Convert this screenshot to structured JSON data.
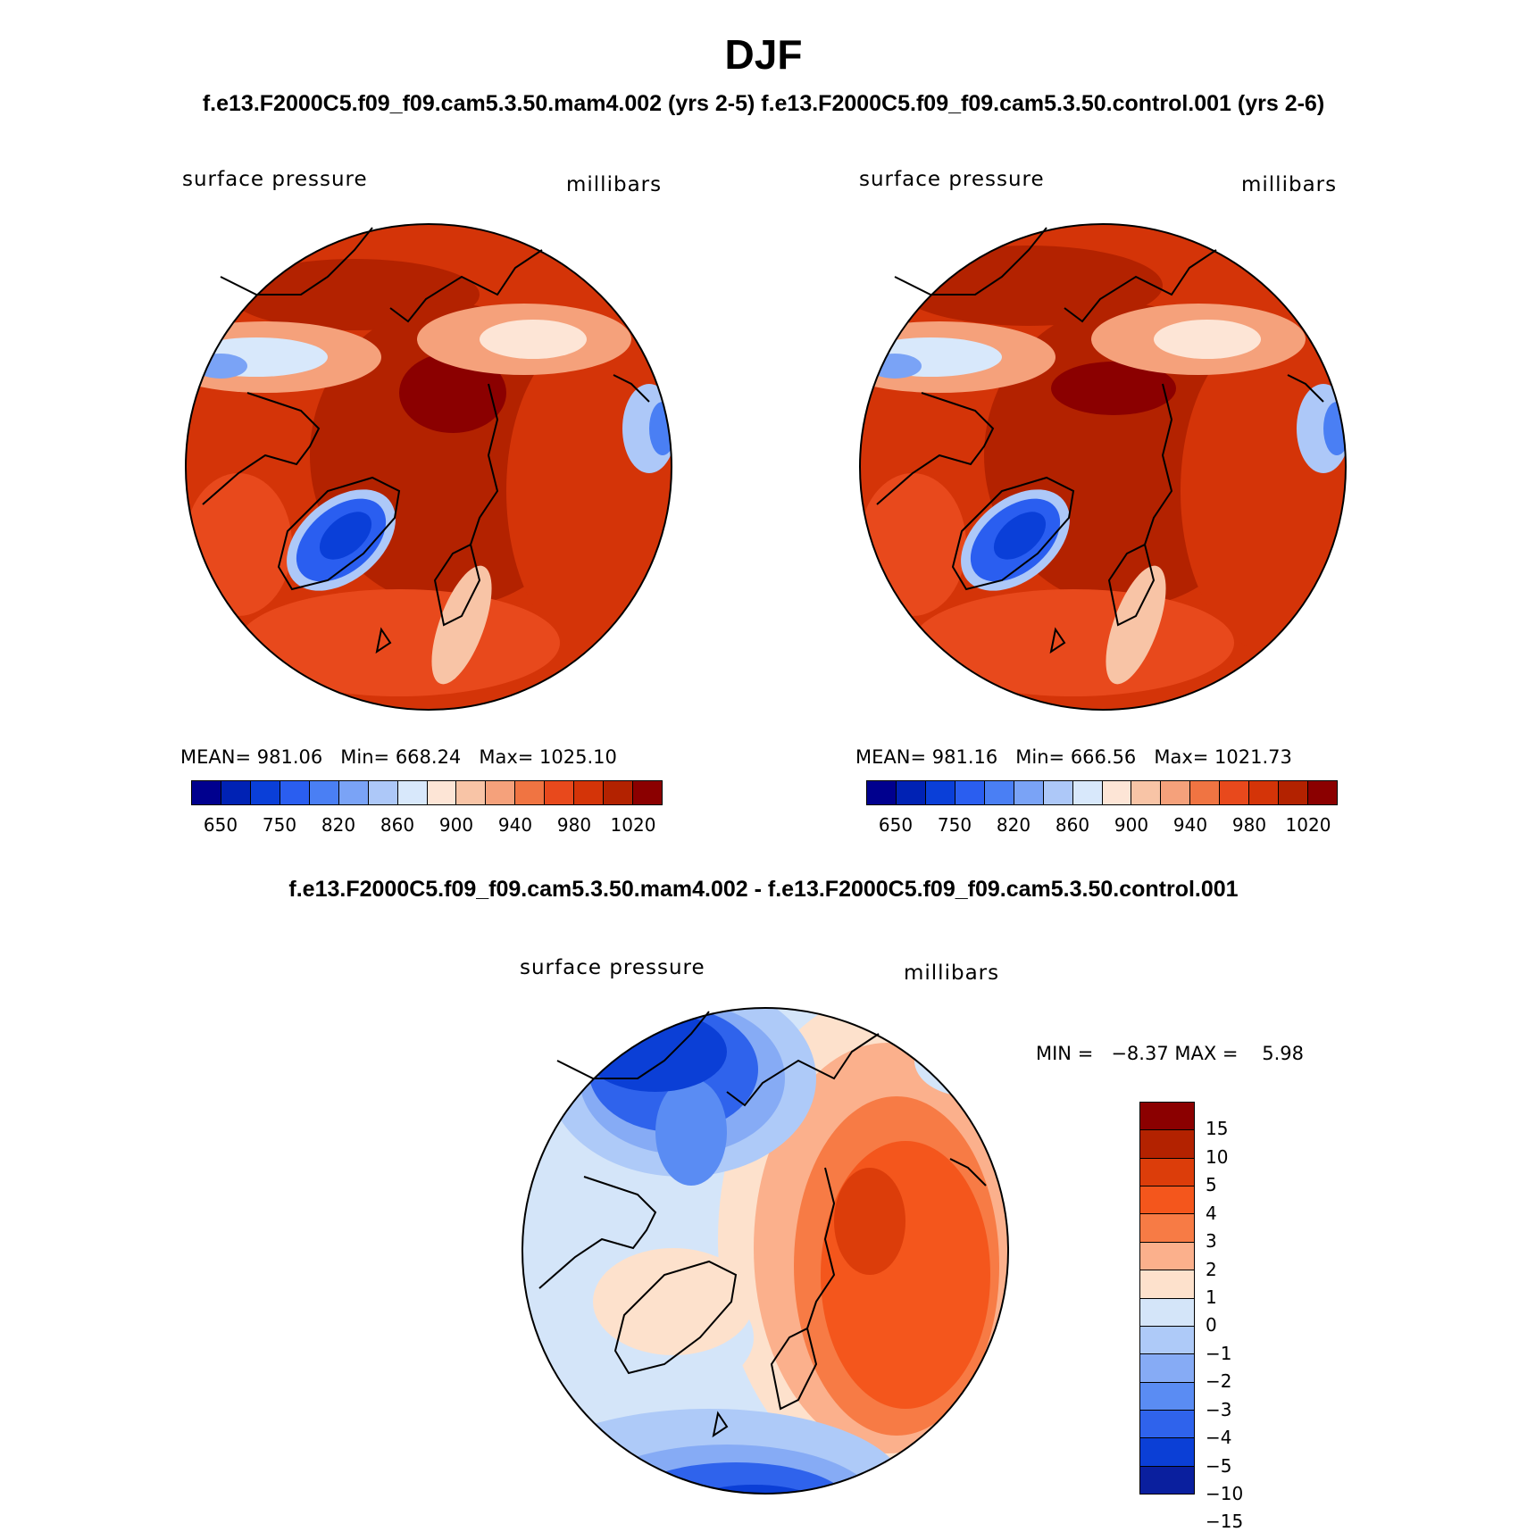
{
  "title": "DJF",
  "subtitle": "f.e13.F2000C5.f09_f09.cam5.3.50.mam4.002 (yrs 2-5) f.e13.F2000C5.f09_f09.cam5.3.50.control.001 (yrs 2-6)",
  "diff_title": "f.e13.F2000C5.f09_f09.cam5.3.50.mam4.002 - f.e13.F2000C5.f09_f09.cam5.3.50.control.001",
  "colors": {
    "abs_scale": [
      "#00008e",
      "#0022b4",
      "#0a3fd8",
      "#2a5ef0",
      "#4a7ff4",
      "#7aa3f6",
      "#adc8f8",
      "#d8e8fb",
      "#fde5d6",
      "#f8c4a6",
      "#f5a17b",
      "#f07442",
      "#e8491c",
      "#d43408",
      "#b32200",
      "#8b0000"
    ],
    "diff_scale": [
      "#8b0000",
      "#b32200",
      "#dc3d0a",
      "#f4561c",
      "#f77b45",
      "#fbb08c",
      "#fde1cc",
      "#d4e5f9",
      "#aecaf8",
      "#86abf5",
      "#5a8cf3",
      "#2f63ec",
      "#0b3fd6",
      "#0a1f9e"
    ],
    "land_outline": "#000000"
  },
  "chart_data": [
    {
      "type": "heatmap",
      "projection": "north-polar-stereographic",
      "panel": "mam4.002",
      "variable_label": "surface pressure",
      "units_label": "millibars",
      "stats": {
        "mean_label": "MEAN=",
        "mean": "981.06",
        "min_label": "Min=",
        "min": "668.24",
        "max_label": "Max=",
        "max": "1025.10"
      },
      "contour_levels": [
        650,
        700,
        750,
        800,
        820,
        840,
        860,
        880,
        900,
        920,
        940,
        960,
        980,
        1000,
        1020
      ],
      "colorbar_tick_labels": [
        "650",
        "750",
        "820",
        "860",
        "900",
        "940",
        "980",
        "1020"
      ]
    },
    {
      "type": "heatmap",
      "projection": "north-polar-stereographic",
      "panel": "control.001",
      "variable_label": "surface pressure",
      "units_label": "millibars",
      "stats": {
        "mean_label": "MEAN=",
        "mean": "981.16",
        "min_label": "Min=",
        "min": "666.56",
        "max_label": "Max=",
        "max": "1021.73"
      },
      "contour_levels": [
        650,
        700,
        750,
        800,
        820,
        840,
        860,
        880,
        900,
        920,
        940,
        960,
        980,
        1000,
        1020
      ],
      "colorbar_tick_labels": [
        "650",
        "750",
        "820",
        "860",
        "900",
        "940",
        "980",
        "1020"
      ]
    },
    {
      "type": "heatmap",
      "projection": "north-polar-stereographic",
      "panel": "difference",
      "variable_label": "surface pressure",
      "units_label": "millibars",
      "stats": {
        "min_label": "MIN =",
        "min": "−8.37",
        "max_label": "MAX =",
        "max": "5.98"
      },
      "contour_levels": [
        15,
        10,
        5,
        4,
        3,
        2,
        1,
        0,
        -1,
        -2,
        -3,
        -4,
        -5,
        -10,
        -15
      ],
      "colorbar_tick_labels": [
        "15",
        "10",
        "5",
        "4",
        "3",
        "2",
        "1",
        "0",
        "−1",
        "−2",
        "−3",
        "−4",
        "−5",
        "−10",
        "−15"
      ]
    }
  ]
}
